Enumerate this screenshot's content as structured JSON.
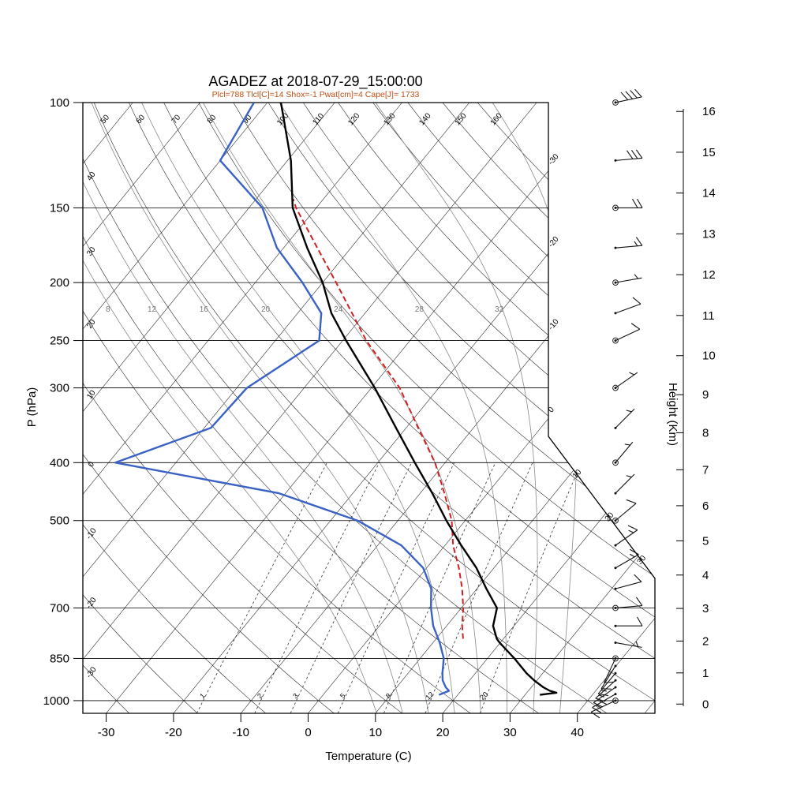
{
  "header": {
    "title": "AGADEZ at 2018-07-29_15:00:00",
    "params_line": "Plcl=788 Tlcl[C]=14 Shox=-1 Pwat[cm]=4 Cape[J]= 1733"
  },
  "axes_titles": {
    "pressure": "P (hPa)",
    "temperature": "Temperature (C)",
    "height": "Height (Km)"
  },
  "chart_data": {
    "type": "skewt_log_p_sounding",
    "station": "AGADEZ",
    "timestamp": "2018-07-29_15:00:00",
    "indices": {
      "Plcl": 788,
      "Tlcl_C": 14,
      "Shox": -1,
      "Pwat_cm": 4,
      "Cape_J": 1733
    },
    "pressure_axis_hpa": [
      100,
      150,
      200,
      250,
      300,
      400,
      500,
      700,
      850,
      1000
    ],
    "temperature_axis_c": [
      -30,
      -20,
      -10,
      0,
      10,
      20,
      30,
      40
    ],
    "height_axis_km": [
      0,
      1,
      2,
      3,
      4,
      5,
      6,
      7,
      8,
      9,
      10,
      11,
      12,
      13,
      14,
      15,
      16
    ],
    "isotherm_curves_c": [
      -120,
      -110,
      -100,
      -90,
      -80,
      -70,
      -60,
      -50,
      -40,
      -30,
      -20,
      -10,
      0,
      10,
      20,
      30,
      40,
      50
    ],
    "isotherm_edge_labels_c": [
      -30,
      -20,
      -10,
      0,
      10,
      20,
      30
    ],
    "dry_adiabat_labels_c": [
      -30,
      -20,
      -10,
      0,
      10,
      20,
      30,
      40,
      50,
      60,
      70,
      80,
      90,
      100,
      110,
      120,
      130,
      140,
      150,
      160
    ],
    "moist_adiabat_labels_c": [
      8,
      12,
      16,
      20,
      24,
      28,
      32
    ],
    "moist_adiabat_curves_c": [
      8,
      12,
      16,
      20,
      24,
      28,
      32,
      36
    ],
    "mixing_ratio_lines_gkg": [
      1,
      2,
      3,
      5,
      8,
      12,
      20
    ],
    "temperature_profile": [
      [
        978,
        32.2
      ],
      [
        970,
        34.4
      ],
      [
        963,
        33.2
      ],
      [
        950,
        31.8
      ],
      [
        925,
        29.6
      ],
      [
        900,
        27.6
      ],
      [
        850,
        24.0
      ],
      [
        800,
        19.9
      ],
      [
        788,
        19.0
      ],
      [
        750,
        16.9
      ],
      [
        700,
        15.3
      ],
      [
        650,
        11.4
      ],
      [
        600,
        7.4
      ],
      [
        550,
        2.4
      ],
      [
        500,
        -2.8
      ],
      [
        450,
        -8.2
      ],
      [
        400,
        -14.5
      ],
      [
        350,
        -21.5
      ],
      [
        300,
        -29.5
      ],
      [
        250,
        -39.5
      ],
      [
        225,
        -45.0
      ],
      [
        200,
        -50.0
      ],
      [
        175,
        -56.5
      ],
      [
        150,
        -63.5
      ],
      [
        125,
        -69.5
      ],
      [
        100,
        -78.0
      ]
    ],
    "dewpoint_profile": [
      [
        978,
        17.2
      ],
      [
        963,
        18.2
      ],
      [
        950,
        17.3
      ],
      [
        925,
        16.0
      ],
      [
        900,
        15.1
      ],
      [
        850,
        13.5
      ],
      [
        800,
        11.0
      ],
      [
        750,
        8.0
      ],
      [
        700,
        5.5
      ],
      [
        650,
        3.2
      ],
      [
        600,
        -0.5
      ],
      [
        550,
        -6.5
      ],
      [
        500,
        -16.0
      ],
      [
        450,
        -31.0
      ],
      [
        400,
        -59.0
      ],
      [
        350,
        -49.0
      ],
      [
        300,
        -48.5
      ],
      [
        250,
        -43.5
      ],
      [
        225,
        -46.5
      ],
      [
        200,
        -53.0
      ],
      [
        175,
        -61.0
      ],
      [
        150,
        -68.0
      ],
      [
        125,
        -80.0
      ],
      [
        100,
        -82.0
      ]
    ],
    "parcel_path": [
      [
        788,
        14.0
      ],
      [
        750,
        12.3
      ],
      [
        700,
        10.3
      ],
      [
        650,
        7.8
      ],
      [
        600,
        4.8
      ],
      [
        550,
        1.2
      ],
      [
        500,
        -2.0
      ],
      [
        450,
        -6.4
      ],
      [
        400,
        -11.5
      ],
      [
        350,
        -18.2
      ],
      [
        300,
        -25.8
      ],
      [
        250,
        -36.5
      ],
      [
        200,
        -48.0
      ],
      [
        175,
        -55.0
      ],
      [
        150,
        -63.0
      ],
      [
        145,
        -64.5
      ]
    ],
    "winds": [
      {
        "p": 1000,
        "dir": 245,
        "spd": 12
      },
      {
        "p": 975,
        "dir": 240,
        "spd": 15
      },
      {
        "p": 950,
        "dir": 235,
        "spd": 18
      },
      {
        "p": 925,
        "dir": 228,
        "spd": 15
      },
      {
        "p": 900,
        "dir": 220,
        "spd": 15
      },
      {
        "p": 875,
        "dir": 212,
        "spd": 12
      },
      {
        "p": 850,
        "dir": 205,
        "spd": 10
      },
      {
        "p": 800,
        "dir": 100,
        "spd": 5
      },
      {
        "p": 750,
        "dir": 90,
        "spd": 8
      },
      {
        "p": 700,
        "dir": 85,
        "spd": 10
      },
      {
        "p": 650,
        "dir": 75,
        "spd": 10
      },
      {
        "p": 600,
        "dir": 60,
        "spd": 13
      },
      {
        "p": 550,
        "dir": 55,
        "spd": 15
      },
      {
        "p": 500,
        "dir": 50,
        "spd": 10
      },
      {
        "p": 450,
        "dir": 45,
        "spd": 7
      },
      {
        "p": 400,
        "dir": 40,
        "spd": 3
      },
      {
        "p": 350,
        "dir": 45,
        "spd": 5
      },
      {
        "p": 300,
        "dir": 55,
        "spd": 3
      },
      {
        "p": 250,
        "dir": 65,
        "spd": 8
      },
      {
        "p": 225,
        "dir": 70,
        "spd": 12
      },
      {
        "p": 200,
        "dir": 80,
        "spd": 5
      },
      {
        "p": 175,
        "dir": 85,
        "spd": 13
      },
      {
        "p": 150,
        "dir": 90,
        "spd": 18
      },
      {
        "p": 125,
        "dir": 85,
        "spd": 28
      },
      {
        "p": 100,
        "dir": 78,
        "spd": 42
      }
    ],
    "mandatory_wind_levels_hpa": [
      1000,
      850,
      700,
      500,
      400,
      300,
      250,
      200,
      150,
      100
    ],
    "colors": {
      "temperature": "#000000",
      "dewpoint": "#3a62c4",
      "parcel": "#d02020",
      "params_line": "#bf4f12",
      "moist_adiabat": "#8a8a8a",
      "gridline": "#1a1a1a"
    }
  }
}
